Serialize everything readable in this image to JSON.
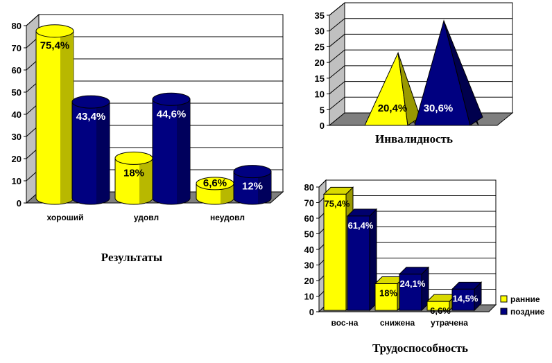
{
  "colors": {
    "yellow": "#ffff00",
    "navy": "#000080"
  },
  "chart_data": [
    {
      "type": "bar",
      "style": "3d-cylinder",
      "title": "Результаты",
      "categories": [
        "хороший",
        "удовл",
        "неудовл"
      ],
      "series": [
        {
          "values": [
            75.4,
            18,
            6.6
          ],
          "labels": [
            "75,4%",
            "18%",
            "6,6%"
          ],
          "color": "#ffff00"
        },
        {
          "values": [
            43.4,
            44.6,
            12
          ],
          "labels": [
            "43,4%",
            "44,6%",
            "12%"
          ],
          "color": "#000080"
        }
      ],
      "yticks": [
        "0",
        "10",
        "20",
        "30",
        "40",
        "50",
        "60",
        "70",
        "80"
      ],
      "ylim": [
        0,
        80
      ]
    },
    {
      "type": "bar",
      "style": "3d-pyramid",
      "title": "Инвалидность",
      "categories": [
        ""
      ],
      "series": [
        {
          "values": [
            20.4
          ],
          "labels": [
            "20,4%"
          ],
          "color": "#ffff00"
        },
        {
          "values": [
            30.6
          ],
          "labels": [
            "30,6%"
          ],
          "color": "#000080"
        }
      ],
      "yticks": [
        "0",
        "5",
        "10",
        "15",
        "20",
        "25",
        "30",
        "35"
      ],
      "ylim": [
        0,
        35
      ]
    },
    {
      "type": "bar",
      "style": "3d-column",
      "title": "Трудоспособность",
      "categories": [
        "вос-на",
        "снижена",
        "утрачена"
      ],
      "series": [
        {
          "name": "ранние",
          "values": [
            75.4,
            18,
            6.6
          ],
          "labels": [
            "75,4%",
            "18%",
            "6,6%"
          ],
          "color": "#ffff00"
        },
        {
          "name": "поздние",
          "values": [
            61.4,
            24.1,
            14.5
          ],
          "labels": [
            "61,4%",
            "24,1%",
            "14,5%"
          ],
          "color": "#000080"
        }
      ],
      "yticks": [
        "0",
        "10",
        "20",
        "30",
        "40",
        "50",
        "60",
        "70",
        "80"
      ],
      "ylim": [
        0,
        80
      ],
      "legend": "right"
    }
  ]
}
